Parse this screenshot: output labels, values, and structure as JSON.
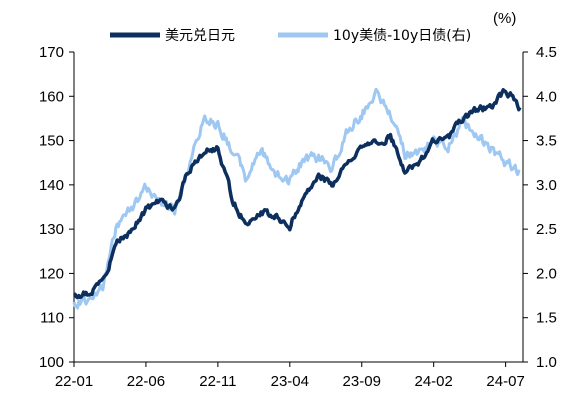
{
  "chart_data": {
    "type": "line",
    "unit_label_right": "(%)",
    "x_tick_labels": [
      "22-01",
      "22-06",
      "22-11",
      "23-04",
      "23-09",
      "24-02",
      "24-07"
    ],
    "y_left": {
      "lim": [
        100,
        170
      ],
      "ticks": [
        "100",
        "110",
        "120",
        "130",
        "140",
        "150",
        "160",
        "170"
      ]
    },
    "y_right": {
      "lim": [
        1.0,
        4.5
      ],
      "ticks": [
        "1.0",
        "1.5",
        "2.0",
        "2.5",
        "3.0",
        "3.5",
        "4.0",
        "4.5"
      ]
    },
    "legend_position": "top-center",
    "x": [
      "22-01",
      "22-02",
      "22-03",
      "22-04",
      "22-05",
      "22-06",
      "22-07",
      "22-08",
      "22-09",
      "22-10",
      "22-11",
      "22-12",
      "23-01",
      "23-02",
      "23-03",
      "23-04",
      "23-05",
      "23-06",
      "23-07",
      "23-08",
      "23-09",
      "23-10",
      "23-11",
      "23-12",
      "24-01",
      "24-02",
      "24-03",
      "24-04",
      "24-05",
      "24-06",
      "24-07",
      "24-08"
    ],
    "series": [
      {
        "name": "美元兑日元",
        "axis": "left",
        "color": "#0d2f5e",
        "values": [
          115.1,
          115.3,
          118.5,
          126.8,
          129.5,
          134.5,
          136.5,
          134.5,
          143.5,
          147.5,
          148.0,
          137.0,
          130.5,
          134.0,
          133.0,
          131.0,
          137.5,
          142.0,
          140.0,
          145.5,
          148.0,
          149.5,
          151.0,
          143.0,
          145.0,
          150.0,
          150.5,
          155.0,
          157.0,
          157.5,
          161.5,
          157.5
        ]
      },
      {
        "name": "10y美债-10y日债(右)",
        "axis": "right",
        "color": "#9ec8f2",
        "values": [
          1.65,
          1.72,
          1.85,
          2.55,
          2.75,
          2.95,
          2.85,
          2.7,
          3.2,
          3.75,
          3.7,
          3.4,
          3.05,
          3.4,
          3.1,
          3.05,
          3.3,
          3.3,
          3.2,
          3.6,
          3.8,
          4.05,
          3.8,
          3.35,
          3.35,
          3.5,
          3.45,
          3.7,
          3.55,
          3.4,
          3.25,
          3.15
        ]
      }
    ]
  }
}
